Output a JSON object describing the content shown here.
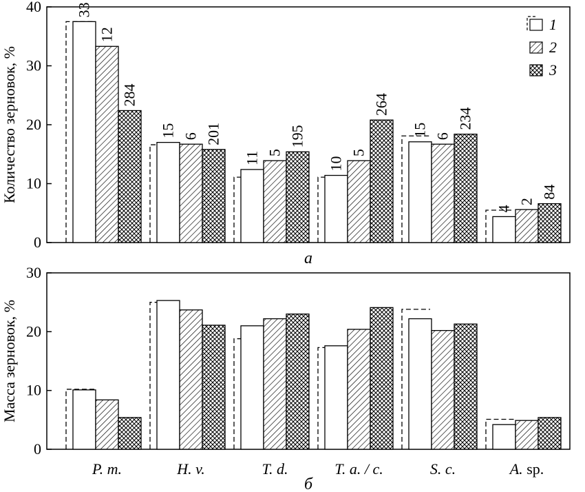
{
  "colors": {
    "axis": "#000000",
    "bar_fill": "#ffffff",
    "stroke": "#000000"
  },
  "legend": {
    "placement": "top-right",
    "items": [
      {
        "label": "1",
        "pattern": "empty"
      },
      {
        "label": "2",
        "pattern": "diagonal-hatch"
      },
      {
        "label": "3",
        "pattern": "cross-hatch"
      }
    ]
  },
  "chart_data": [
    {
      "type": "bar",
      "panel_label": "а",
      "ylabel": "Количество зерновок, %",
      "ylim": [
        0,
        40
      ],
      "yticks": [
        0,
        10,
        20,
        30,
        40
      ],
      "categories": [
        "P. m.",
        "H. v.",
        "T. d.",
        "T. a. / c.",
        "S. c.",
        "A. sp."
      ],
      "show_x_tick_labels": false,
      "dashed_reference": [
        37.5,
        16.6,
        11.1,
        11.1,
        18.1,
        5.5
      ],
      "series": [
        {
          "name": "1",
          "pattern": "empty",
          "values": [
            37.5,
            17.0,
            12.4,
            11.4,
            17.1,
            4.4
          ],
          "labels": [
            "33",
            "15",
            "11",
            "10",
            "15",
            "4"
          ]
        },
        {
          "name": "2",
          "pattern": "diagonal-hatch",
          "values": [
            33.3,
            16.7,
            13.9,
            13.9,
            16.7,
            5.6
          ],
          "labels": [
            "12",
            "6",
            "5",
            "5",
            "6",
            "2"
          ]
        },
        {
          "name": "3",
          "pattern": "cross-hatch",
          "values": [
            22.4,
            15.8,
            15.4,
            20.8,
            18.4,
            6.6
          ],
          "labels": [
            "284",
            "201",
            "195",
            "264",
            "234",
            "84"
          ]
        }
      ]
    },
    {
      "type": "bar",
      "panel_label": "б",
      "ylabel": "Масса зерновок, %",
      "ylim": [
        0,
        30
      ],
      "yticks": [
        0,
        10,
        20,
        30
      ],
      "categories": [
        "P. m.",
        "H. v.",
        "T. d.",
        "T. a. / c.",
        "S. c.",
        "A. sp."
      ],
      "show_x_tick_labels": true,
      "dashed_reference": [
        10.2,
        25.0,
        18.8,
        17.3,
        23.8,
        5.1
      ],
      "series": [
        {
          "name": "1",
          "pattern": "empty",
          "values": [
            10.1,
            25.3,
            21.0,
            17.6,
            22.2,
            4.2
          ]
        },
        {
          "name": "2",
          "pattern": "diagonal-hatch",
          "values": [
            8.4,
            23.7,
            22.2,
            20.4,
            20.2,
            4.9
          ]
        },
        {
          "name": "3",
          "pattern": "cross-hatch",
          "values": [
            5.4,
            21.1,
            23.0,
            24.1,
            21.3,
            5.4
          ]
        }
      ]
    }
  ]
}
